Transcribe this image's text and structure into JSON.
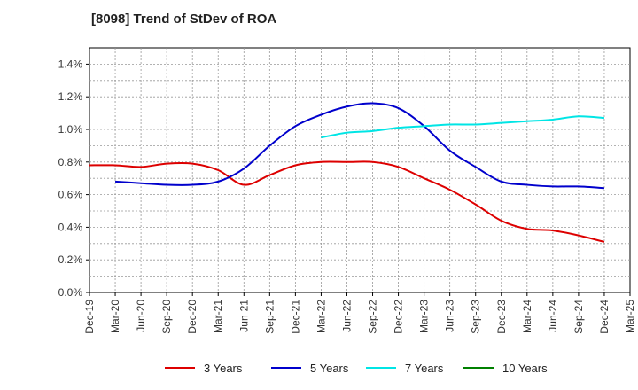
{
  "chart_data": {
    "type": "line",
    "title": "[8098]  Trend of StDev of ROA",
    "x_ticks": [
      "Dec-19",
      "Mar-20",
      "Jun-20",
      "Sep-20",
      "Dec-20",
      "Mar-21",
      "Jun-21",
      "Sep-21",
      "Dec-21",
      "Mar-22",
      "Jun-22",
      "Sep-22",
      "Dec-22",
      "Mar-23",
      "Jun-23",
      "Sep-23",
      "Dec-23",
      "Mar-24",
      "Jun-24",
      "Sep-24",
      "Dec-24",
      "Mar-25"
    ],
    "y_ticks": [
      "0.0%",
      "0.2%",
      "0.4%",
      "0.6%",
      "0.8%",
      "1.0%",
      "1.2%",
      "1.4%"
    ],
    "ylim": [
      0,
      1.5
    ],
    "grid": true,
    "legend_position": "bottom",
    "series": [
      {
        "name": "3 Years",
        "color": "#dd0000",
        "x": [
          "Dec-19",
          "Mar-20",
          "Jun-20",
          "Sep-20",
          "Dec-20",
          "Mar-21",
          "Jun-21",
          "Sep-21",
          "Dec-21",
          "Mar-22",
          "Jun-22",
          "Sep-22",
          "Dec-22",
          "Mar-23",
          "Jun-23",
          "Sep-23",
          "Dec-23",
          "Mar-24",
          "Jun-24",
          "Sep-24",
          "Dec-24"
        ],
        "values": [
          0.78,
          0.78,
          0.77,
          0.79,
          0.79,
          0.75,
          0.66,
          0.72,
          0.78,
          0.8,
          0.8,
          0.8,
          0.77,
          0.7,
          0.63,
          0.54,
          0.44,
          0.39,
          0.38,
          0.35,
          0.31
        ]
      },
      {
        "name": "5 Years",
        "color": "#0000cc",
        "x": [
          "Mar-20",
          "Jun-20",
          "Sep-20",
          "Dec-20",
          "Mar-21",
          "Jun-21",
          "Sep-21",
          "Dec-21",
          "Mar-22",
          "Jun-22",
          "Sep-22",
          "Dec-22",
          "Mar-23",
          "Jun-23",
          "Sep-23",
          "Dec-23",
          "Mar-24",
          "Jun-24",
          "Sep-24",
          "Dec-24"
        ],
        "values": [
          0.68,
          0.67,
          0.66,
          0.66,
          0.68,
          0.76,
          0.9,
          1.02,
          1.09,
          1.14,
          1.16,
          1.13,
          1.02,
          0.87,
          0.77,
          0.68,
          0.66,
          0.65,
          0.65,
          0.64
        ]
      },
      {
        "name": "7 Years",
        "color": "#00e5e5",
        "x": [
          "Mar-22",
          "Jun-22",
          "Sep-22",
          "Dec-22",
          "Mar-23",
          "Jun-23",
          "Sep-23",
          "Dec-23",
          "Mar-24",
          "Jun-24",
          "Sep-24",
          "Dec-24"
        ],
        "values": [
          0.95,
          0.98,
          0.99,
          1.01,
          1.02,
          1.03,
          1.03,
          1.04,
          1.05,
          1.06,
          1.08,
          1.07
        ]
      },
      {
        "name": "10 Years",
        "color": "#008000",
        "x": [],
        "values": []
      }
    ]
  }
}
